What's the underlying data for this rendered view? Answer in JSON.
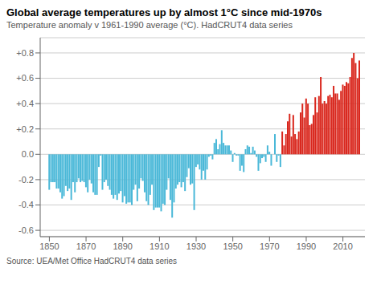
{
  "chart_data": {
    "type": "bar",
    "title": "Global average temperatures up by almost 1°C since mid-1970s",
    "subtitle": "Temperature anomaly v 1961-1990 average (°C). HadCRUT4 data series",
    "annotations": [
      "Source: UEA/Met Office HadCRUT4 data series"
    ],
    "x": [
      1850,
      1851,
      1852,
      1853,
      1854,
      1855,
      1856,
      1857,
      1858,
      1859,
      1860,
      1861,
      1862,
      1863,
      1864,
      1865,
      1866,
      1867,
      1868,
      1869,
      1870,
      1871,
      1872,
      1873,
      1874,
      1875,
      1876,
      1877,
      1878,
      1879,
      1880,
      1881,
      1882,
      1883,
      1884,
      1885,
      1886,
      1887,
      1888,
      1889,
      1890,
      1891,
      1892,
      1893,
      1894,
      1895,
      1896,
      1897,
      1898,
      1899,
      1900,
      1901,
      1902,
      1903,
      1904,
      1905,
      1906,
      1907,
      1908,
      1909,
      1910,
      1911,
      1912,
      1913,
      1914,
      1915,
      1916,
      1917,
      1918,
      1919,
      1920,
      1921,
      1922,
      1923,
      1924,
      1925,
      1926,
      1927,
      1928,
      1929,
      1930,
      1931,
      1932,
      1933,
      1934,
      1935,
      1936,
      1937,
      1938,
      1939,
      1940,
      1941,
      1942,
      1943,
      1944,
      1945,
      1946,
      1947,
      1948,
      1949,
      1950,
      1951,
      1952,
      1953,
      1954,
      1955,
      1956,
      1957,
      1958,
      1959,
      1960,
      1961,
      1962,
      1963,
      1964,
      1965,
      1966,
      1967,
      1968,
      1969,
      1970,
      1971,
      1972,
      1973,
      1974,
      1975,
      1976,
      1977,
      1978,
      1979,
      1980,
      1981,
      1982,
      1983,
      1984,
      1985,
      1986,
      1987,
      1988,
      1989,
      1990,
      1991,
      1992,
      1993,
      1994,
      1995,
      1996,
      1997,
      1998,
      1999,
      2000,
      2001,
      2002,
      2003,
      2004,
      2005,
      2006,
      2007,
      2008,
      2009,
      2010,
      2011,
      2012,
      2013,
      2014,
      2015,
      2016,
      2017,
      2018,
      2019
    ],
    "values": [
      -0.28,
      -0.22,
      -0.22,
      -0.22,
      -0.27,
      -0.27,
      -0.3,
      -0.35,
      -0.33,
      -0.25,
      -0.29,
      -0.27,
      -0.36,
      -0.22,
      -0.3,
      -0.22,
      -0.19,
      -0.22,
      -0.21,
      -0.22,
      -0.26,
      -0.3,
      -0.2,
      -0.23,
      -0.3,
      -0.32,
      -0.32,
      -0.1,
      -0.01,
      -0.28,
      -0.22,
      -0.2,
      -0.25,
      -0.28,
      -0.32,
      -0.35,
      -0.32,
      -0.36,
      -0.31,
      -0.29,
      -0.38,
      -0.33,
      -0.39,
      -0.38,
      -0.38,
      -0.4,
      -0.28,
      -0.24,
      -0.37,
      -0.27,
      -0.19,
      -0.21,
      -0.3,
      -0.37,
      -0.4,
      -0.32,
      -0.24,
      -0.44,
      -0.42,
      -0.42,
      -0.42,
      -0.45,
      -0.39,
      -0.4,
      -0.28,
      -0.19,
      -0.36,
      -0.5,
      -0.38,
      -0.27,
      -0.24,
      -0.22,
      -0.26,
      -0.22,
      -0.29,
      -0.18,
      -0.11,
      -0.24,
      -0.23,
      -0.44,
      -0.1,
      -0.08,
      -0.12,
      -0.2,
      -0.13,
      -0.2,
      -0.12,
      -0.02,
      -0.01,
      -0.04,
      0.09,
      0.12,
      0.04,
      0.08,
      0.19,
      0.09,
      0.07,
      0.07,
      0.07,
      0.03,
      -0.06,
      0.01,
      -0.01,
      -0.01,
      -0.13,
      -0.09,
      -0.14,
      0.04,
      0.07,
      0.06,
      0.01,
      0.06,
      0.03,
      -0.02,
      -0.13,
      -0.07,
      -0.03,
      -0.02,
      -0.06,
      0.07,
      0.02,
      -0.09,
      0.0,
      0.16,
      -0.06,
      -0.01,
      -0.1,
      0.18,
      0.07,
      0.16,
      0.26,
      0.32,
      0.14,
      0.31,
      0.16,
      0.12,
      0.18,
      0.33,
      0.4,
      0.29,
      0.44,
      0.4,
      0.23,
      0.24,
      0.31,
      0.45,
      0.33,
      0.46,
      0.61,
      0.4,
      0.42,
      0.4,
      0.46,
      0.47,
      0.45,
      0.54,
      0.48,
      0.48,
      0.43,
      0.5,
      0.55,
      0.54,
      0.57,
      0.56,
      0.61,
      0.76,
      0.8,
      0.72,
      0.6,
      0.74
    ],
    "colors": [
      "#4ab8d8",
      "#4ab8d8",
      "#4ab8d8",
      "#4ab8d8",
      "#4ab8d8",
      "#4ab8d8",
      "#4ab8d8",
      "#4ab8d8",
      "#4ab8d8",
      "#4ab8d8",
      "#4ab8d8",
      "#4ab8d8",
      "#4ab8d8",
      "#4ab8d8",
      "#4ab8d8",
      "#4ab8d8",
      "#4ab8d8",
      "#4ab8d8",
      "#4ab8d8",
      "#4ab8d8",
      "#4ab8d8",
      "#4ab8d8",
      "#4ab8d8",
      "#4ab8d8",
      "#4ab8d8",
      "#4ab8d8",
      "#4ab8d8",
      "#4ab8d8",
      "#4ab8d8",
      "#4ab8d8",
      "#4ab8d8",
      "#4ab8d8",
      "#4ab8d8",
      "#4ab8d8",
      "#4ab8d8",
      "#4ab8d8",
      "#4ab8d8",
      "#4ab8d8",
      "#4ab8d8",
      "#4ab8d8",
      "#4ab8d8",
      "#4ab8d8",
      "#4ab8d8",
      "#4ab8d8",
      "#4ab8d8",
      "#4ab8d8",
      "#4ab8d8",
      "#4ab8d8",
      "#4ab8d8",
      "#4ab8d8",
      "#4ab8d8",
      "#4ab8d8",
      "#4ab8d8",
      "#4ab8d8",
      "#4ab8d8",
      "#4ab8d8",
      "#4ab8d8",
      "#4ab8d8",
      "#4ab8d8",
      "#4ab8d8",
      "#4ab8d8",
      "#4ab8d8",
      "#4ab8d8",
      "#4ab8d8",
      "#4ab8d8",
      "#4ab8d8",
      "#4ab8d8",
      "#4ab8d8",
      "#4ab8d8",
      "#4ab8d8",
      "#4ab8d8",
      "#4ab8d8",
      "#4ab8d8",
      "#4ab8d8",
      "#4ab8d8",
      "#4ab8d8",
      "#4ab8d8",
      "#4ab8d8",
      "#4ab8d8",
      "#4ab8d8",
      "#4ab8d8",
      "#4ab8d8",
      "#4ab8d8",
      "#4ab8d8",
      "#4ab8d8",
      "#4ab8d8",
      "#4ab8d8",
      "#4ab8d8",
      "#4ab8d8",
      "#4ab8d8",
      "#4ab8d8",
      "#4ab8d8",
      "#4ab8d8",
      "#4ab8d8",
      "#4ab8d8",
      "#4ab8d8",
      "#4ab8d8",
      "#4ab8d8",
      "#4ab8d8",
      "#4ab8d8",
      "#4ab8d8",
      "#4ab8d8",
      "#4ab8d8",
      "#4ab8d8",
      "#4ab8d8",
      "#4ab8d8",
      "#4ab8d8",
      "#4ab8d8",
      "#4ab8d8",
      "#4ab8d8",
      "#4ab8d8",
      "#4ab8d8",
      "#4ab8d8",
      "#4ab8d8",
      "#4ab8d8",
      "#4ab8d8",
      "#4ab8d8",
      "#4ab8d8",
      "#4ab8d8",
      "#4ab8d8",
      "#4ab8d8",
      "#4ab8d8",
      "#4ab8d8",
      "#4ab8d8",
      "#4ab8d8",
      "#4ab8d8",
      "#4ab8d8",
      "#d9261c",
      "#d9261c",
      "#d9261c",
      "#d9261c",
      "#d9261c",
      "#d9261c",
      "#d9261c",
      "#d9261c",
      "#d9261c",
      "#d9261c",
      "#d9261c",
      "#d9261c",
      "#d9261c",
      "#d9261c",
      "#d9261c",
      "#d9261c",
      "#d9261c",
      "#d9261c",
      "#d9261c",
      "#d9261c",
      "#d9261c",
      "#d9261c",
      "#d9261c",
      "#d9261c",
      "#d9261c",
      "#d9261c",
      "#d9261c",
      "#d9261c",
      "#d9261c",
      "#d9261c",
      "#d9261c",
      "#d9261c",
      "#d9261c",
      "#d9261c",
      "#d9261c",
      "#d9261c",
      "#d9261c",
      "#d9261c",
      "#d9261c",
      "#d9261c",
      "#d9261c",
      "#d9261c",
      "#d9261c"
    ],
    "xlim": [
      1845,
      2022
    ],
    "xticks": [
      1850,
      1870,
      1890,
      1910,
      1930,
      1950,
      1970,
      1990,
      2010
    ],
    "ylim": [
      -0.65,
      0.92
    ],
    "yticks": [
      -0.6,
      -0.4,
      -0.2,
      {
        "value": 0.0,
        "label": "0.0"
      },
      {
        "value": 0.2,
        "label": "+0.2"
      },
      {
        "value": 0.4,
        "label": "+0.4"
      },
      {
        "value": 0.6,
        "label": "+0.6"
      },
      {
        "value": 0.8,
        "label": "+0.8"
      }
    ],
    "grid": true
  }
}
